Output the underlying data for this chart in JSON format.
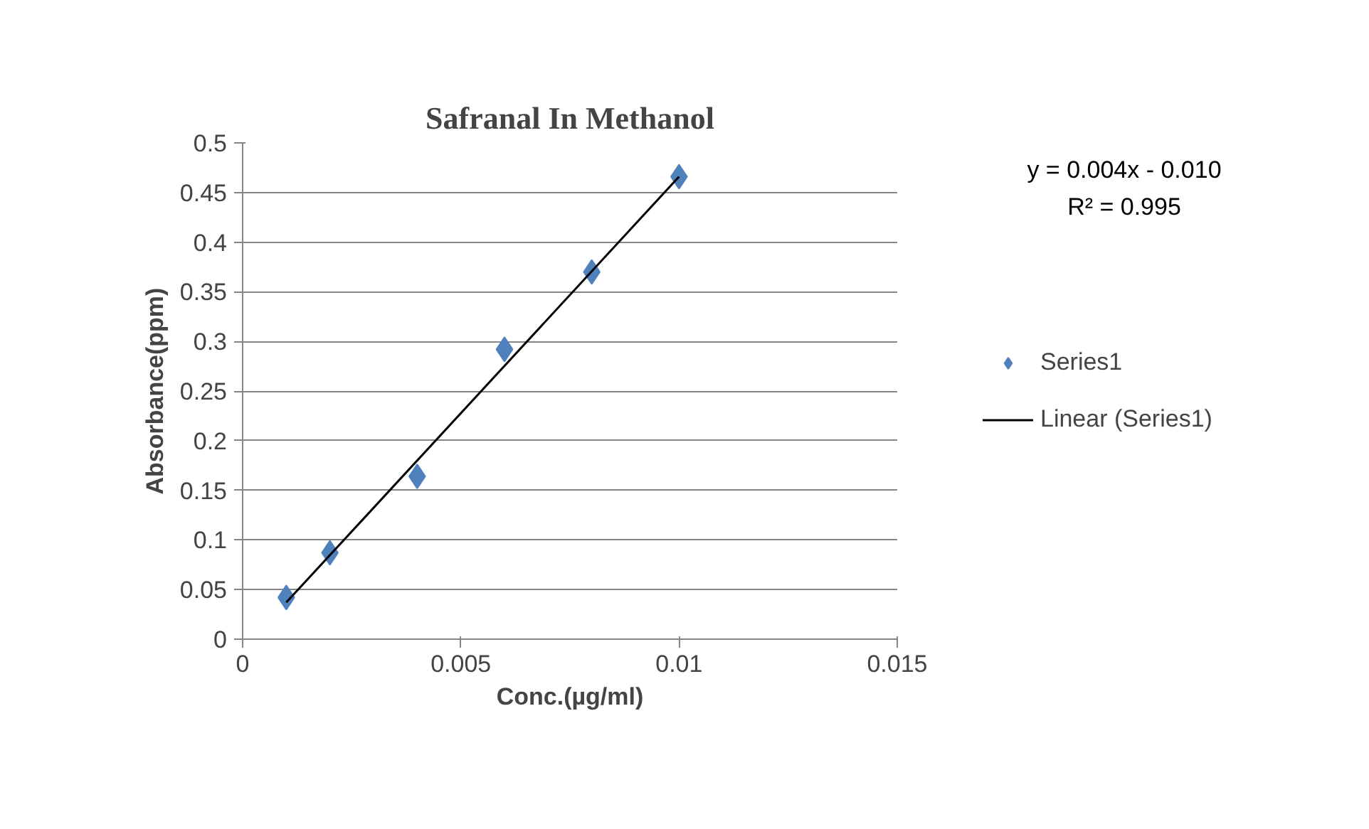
{
  "chart_data": {
    "type": "scatter",
    "title": "Safranal In Methanol",
    "xlabel": "Conc.(µg/ml)",
    "ylabel": "Absorbance(ppm)",
    "x": [
      0.001,
      0.002,
      0.004,
      0.006,
      0.008,
      0.01
    ],
    "series": [
      {
        "name": "Series1",
        "color": "#4f81bd",
        "values": [
          0.042,
          0.087,
          0.164,
          0.292,
          0.37,
          0.466
        ],
        "marker": "diamond"
      },
      {
        "name": "Linear (Series1)",
        "type": "line",
        "color": "#000000",
        "x": [
          0.001,
          0.01
        ],
        "values": [
          0.037,
          0.466
        ],
        "marker": "none",
        "line_style": "solid"
      }
    ],
    "xlim": [
      0,
      0.015
    ],
    "xticks": [
      0,
      0.005,
      0.01,
      0.015
    ],
    "ylim": [
      0,
      0.5
    ],
    "yticks": [
      0,
      0.05,
      0.1,
      0.15,
      0.2,
      0.25,
      0.3,
      0.35,
      0.4,
      0.45,
      0.5
    ],
    "grid": "y",
    "legend": "right",
    "annotations": [
      "y = 0.004x - 0.010",
      "R² = 0.995"
    ]
  }
}
